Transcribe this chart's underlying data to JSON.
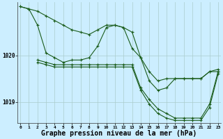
{
  "bg_color": "#cceeff",
  "grid_color": "#aacccc",
  "line_color": "#1a5c1a",
  "xlabel": "Graphe pression niveau de la mer (hPa)",
  "xlabel_fontsize": 7,
  "xtick_labels": [
    "0",
    "1",
    "2",
    "3",
    "4",
    "5",
    "6",
    "7",
    "8",
    "9",
    "10",
    "11",
    "12",
    "13",
    "14",
    "15",
    "16",
    "17",
    "18",
    "19",
    "20",
    "21",
    "22",
    "23"
  ],
  "yticks": [
    1019,
    1020
  ],
  "ylim": [
    1018.55,
    1021.15
  ],
  "xlim": [
    -0.3,
    23.3
  ],
  "line1_x": [
    0,
    1,
    2,
    3,
    4,
    5,
    6,
    7,
    8,
    9,
    10,
    11,
    12,
    13,
    14,
    15,
    16,
    17,
    18,
    19,
    20,
    21,
    22,
    23
  ],
  "line1_y": [
    1021.05,
    1021.0,
    1020.95,
    1020.85,
    1020.75,
    1020.65,
    1020.55,
    1020.5,
    1020.45,
    1020.55,
    1020.65,
    1020.65,
    1020.6,
    1020.15,
    1019.95,
    1019.65,
    1019.45,
    1019.5,
    1019.5,
    1019.5,
    1019.5,
    1019.5,
    1019.65,
    1019.65
  ],
  "line2_x": [
    0,
    1,
    2,
    3,
    4,
    5,
    6,
    7,
    8,
    9,
    10,
    11,
    12,
    13,
    14,
    15,
    16,
    17,
    18,
    19,
    20,
    21,
    22,
    23
  ],
  "line2_y": [
    1021.05,
    1021.0,
    1020.65,
    1020.05,
    1019.95,
    1019.85,
    1019.9,
    1019.9,
    1019.95,
    1020.2,
    1020.6,
    1020.65,
    1020.6,
    1020.5,
    1019.95,
    1019.45,
    1019.25,
    1019.3,
    1019.5,
    1019.5,
    1019.5,
    1019.5,
    1019.65,
    1019.7
  ],
  "line3_x": [
    2,
    3,
    4,
    5,
    6,
    7,
    8,
    9,
    10,
    11,
    12,
    13,
    14,
    15,
    16,
    17,
    18,
    19,
    20,
    21,
    22,
    23
  ],
  "line3_y": [
    1019.9,
    1019.85,
    1019.8,
    1019.8,
    1019.8,
    1019.8,
    1019.8,
    1019.8,
    1019.8,
    1019.8,
    1019.8,
    1019.8,
    1019.3,
    1019.05,
    1018.85,
    1018.75,
    1018.65,
    1018.65,
    1018.65,
    1018.65,
    1018.95,
    1019.65
  ],
  "line4_x": [
    2,
    3,
    4,
    5,
    6,
    7,
    8,
    9,
    10,
    11,
    12,
    13,
    14,
    15,
    16,
    17,
    18,
    19,
    20,
    21,
    22,
    23
  ],
  "line4_y": [
    1019.85,
    1019.8,
    1019.75,
    1019.75,
    1019.75,
    1019.75,
    1019.75,
    1019.75,
    1019.75,
    1019.75,
    1019.75,
    1019.75,
    1019.25,
    1018.95,
    1018.75,
    1018.65,
    1018.6,
    1018.6,
    1018.6,
    1018.6,
    1018.88,
    1019.6
  ]
}
